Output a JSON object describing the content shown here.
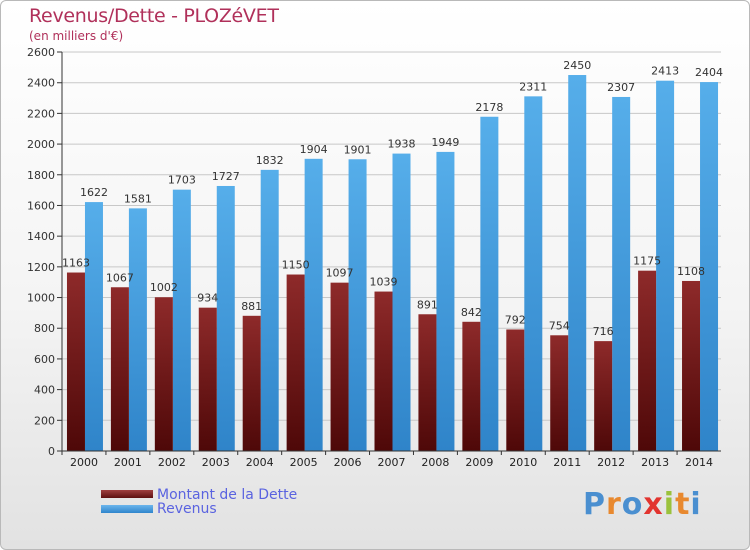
{
  "chart_data": {
    "type": "bar",
    "title": "Revenus/Dette - PLOZéVET",
    "subtitle": "(en milliers d'€)",
    "categories": [
      "2000",
      "2001",
      "2002",
      "2003",
      "2004",
      "2005",
      "2006",
      "2007",
      "2008",
      "2009",
      "2010",
      "2011",
      "2012",
      "2013",
      "2014"
    ],
    "series": [
      {
        "name": "Montant de la Dette",
        "values": [
          1163,
          1067,
          1002,
          934,
          881,
          1150,
          1097,
          1039,
          891,
          842,
          792,
          754,
          716,
          1175,
          1108
        ],
        "labels": [
          "1163",
          "1067",
          "1002",
          "934",
          "881",
          "1150",
          "1097",
          "1039",
          "891",
          "842",
          "792",
          "754",
          "716",
          "1175",
          "1108"
        ],
        "color": "#7a1f1f"
      },
      {
        "name": "Revenus",
        "values": [
          1622,
          1581,
          1703,
          1727,
          1832,
          1904,
          1901,
          1938,
          1949,
          2178,
          2311,
          2450,
          2307,
          2413,
          2404
        ],
        "labels": [
          "1622",
          "1581",
          "1703",
          "1727",
          "1832",
          "1904",
          "1901",
          "1938",
          "1949",
          "2178",
          "2311",
          "2450",
          "2307",
          "2413",
          "2404"
        ],
        "color": "#3f99dd"
      }
    ],
    "yticks": [
      "0",
      "200",
      "400",
      "600",
      "800",
      "1000",
      "1200",
      "1400",
      "1600",
      "1800",
      "2000",
      "2200",
      "2400",
      "2600"
    ],
    "ylim": [
      0,
      2600
    ],
    "grid": true,
    "legend": "bottom-left"
  },
  "legend": {
    "debt_label": "Montant de la Dette",
    "revenue_label": "Revenus"
  },
  "logo": {
    "letters": [
      "P",
      "r",
      "o",
      "x",
      "i",
      "t",
      "i"
    ],
    "colors": [
      "#4a8fd0",
      "#e8892f",
      "#4a8fd0",
      "#e2342f",
      "#9ac23c",
      "#e8892f",
      "#4a8fd0"
    ]
  }
}
